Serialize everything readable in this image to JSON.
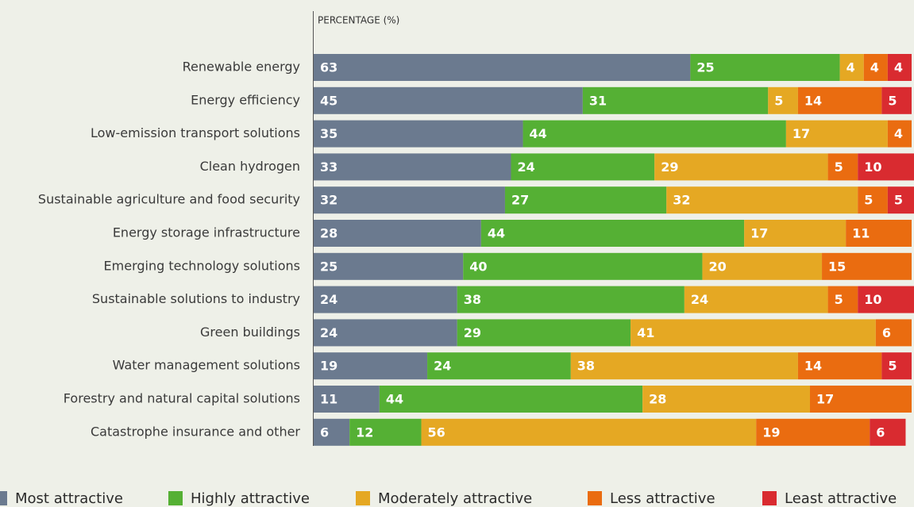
{
  "chart_data": {
    "type": "stacked-barh",
    "x_label": "PERCENTAGE (%)",
    "xlim": [
      0,
      100
    ],
    "categories": [
      "Renewable energy",
      "Energy efficiency",
      "Low-emission transport solutions",
      "Clean hydrogen",
      "Sustainable agriculture and food security",
      "Energy storage infrastructure",
      "Emerging technology solutions",
      "Sustainable solutions to industry",
      "Green buildings",
      "Water management solutions",
      "Forestry and natural capital solutions",
      "Catastrophe insurance and other"
    ],
    "series": [
      {
        "name": "Most attractive",
        "color": "#6b7a8f",
        "values": [
          63,
          45,
          35,
          33,
          32,
          28,
          25,
          24,
          24,
          19,
          11,
          6
        ]
      },
      {
        "name": "Highly attractive",
        "color": "#55b034",
        "values": [
          25,
          31,
          44,
          24,
          27,
          44,
          40,
          38,
          29,
          24,
          44,
          12
        ]
      },
      {
        "name": "Moderately attractive",
        "color": "#e5a823",
        "values": [
          4,
          5,
          17,
          29,
          32,
          17,
          20,
          24,
          41,
          38,
          28,
          56
        ]
      },
      {
        "name": "Less attractive",
        "color": "#ea6c10",
        "values": [
          4,
          14,
          4,
          5,
          5,
          11,
          15,
          5,
          6,
          14,
          17,
          19
        ]
      },
      {
        "name": "Least attractive",
        "color": "#d92b30",
        "values": [
          4,
          5,
          null,
          10,
          5,
          null,
          null,
          10,
          null,
          5,
          null,
          6
        ]
      }
    ]
  }
}
